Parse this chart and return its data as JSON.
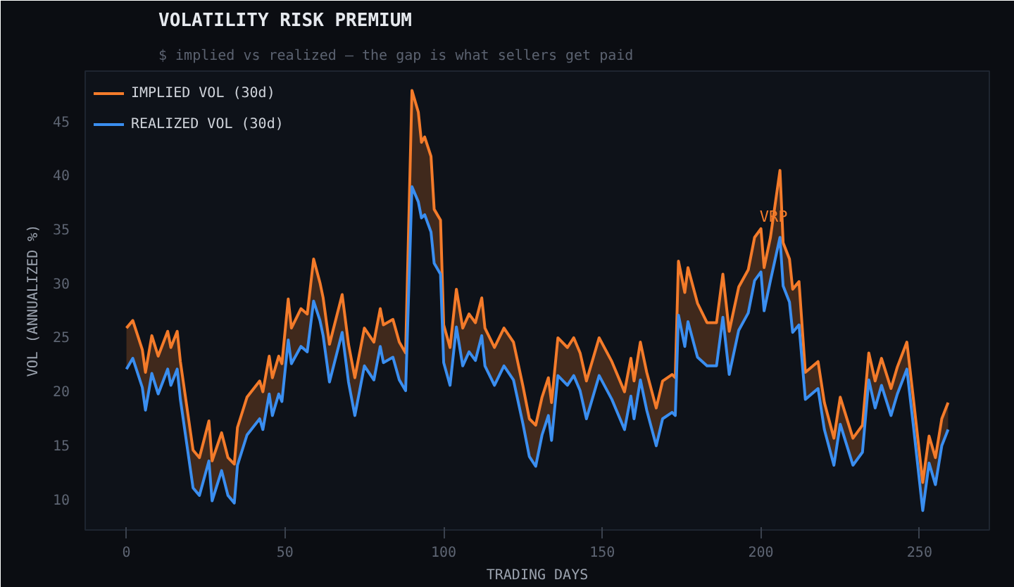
{
  "chart_data": {
    "type": "line",
    "title": "VOLATILITY RISK PREMIUM",
    "subtitle": "$ implied vs realized — the gap is what sellers get paid",
    "xlabel": "TRADING DAYS",
    "ylabel": "VOL (ANNUALIZED %)",
    "xlim": [
      -13,
      272
    ],
    "ylim": [
      7.1,
      49.6
    ],
    "xticks": [
      0,
      50,
      100,
      150,
      200,
      250
    ],
    "yticks": [
      10,
      15,
      20,
      25,
      30,
      35,
      40,
      45
    ],
    "grid": false,
    "legend": "top left",
    "line_style": "solid",
    "marker": "none",
    "annotations": [
      {
        "text": "VRP",
        "x": 204,
        "y": 36.1
      }
    ],
    "series": [
      {
        "name": "IMPLIED VOL (30d)",
        "color": "#f47b2a",
        "x": [
          0,
          2,
          5,
          6,
          8,
          10,
          13,
          14,
          16,
          17,
          21,
          23,
          26,
          27,
          30,
          32,
          34,
          35,
          38,
          42,
          43,
          45,
          46,
          48,
          49,
          51,
          52,
          55,
          57,
          59,
          61,
          62,
          64,
          68,
          70,
          72,
          75,
          78,
          80,
          81,
          84,
          86,
          88,
          90,
          92,
          93,
          94,
          96,
          97,
          99,
          100,
          102,
          104,
          106,
          108,
          110,
          112,
          113,
          116,
          119,
          122,
          125,
          127,
          129,
          131,
          133,
          134,
          136,
          139,
          141,
          143,
          145,
          149,
          153,
          157,
          159,
          160,
          162,
          164,
          167,
          169,
          172,
          173,
          174,
          176,
          177,
          180,
          183,
          186,
          188,
          190,
          193,
          196,
          198,
          200,
          201,
          203,
          206,
          207,
          209,
          210,
          212,
          214,
          218,
          220,
          223,
          225,
          229,
          232,
          234,
          236,
          238,
          241,
          243,
          246,
          248,
          251,
          253,
          255,
          257,
          259
        ],
        "values": [
          25.8,
          26.5,
          23.8,
          21.7,
          25.1,
          23.2,
          25.5,
          24.0,
          25.5,
          22.7,
          14.5,
          13.8,
          17.2,
          13.5,
          16.1,
          13.8,
          13.2,
          16.6,
          19.4,
          20.9,
          19.9,
          23.2,
          21.2,
          23.2,
          22.5,
          28.5,
          25.8,
          27.6,
          27.1,
          32.2,
          30.0,
          28.6,
          24.3,
          28.9,
          24.3,
          21.2,
          25.8,
          24.5,
          27.6,
          26.1,
          26.6,
          24.5,
          23.5,
          47.8,
          45.8,
          43.0,
          43.5,
          41.7,
          36.8,
          35.8,
          26.1,
          24.0,
          29.4,
          25.8,
          27.1,
          26.3,
          28.6,
          25.8,
          24.0,
          25.8,
          24.5,
          20.4,
          17.4,
          16.8,
          19.4,
          21.2,
          18.9,
          24.9,
          24.0,
          24.9,
          23.5,
          20.9,
          24.9,
          22.7,
          19.9,
          23.0,
          20.9,
          24.5,
          21.7,
          18.4,
          20.9,
          21.5,
          21.2,
          32.0,
          29.1,
          31.4,
          28.1,
          26.3,
          26.3,
          30.8,
          25.5,
          29.6,
          31.2,
          34.2,
          35.0,
          31.4,
          34.2,
          40.4,
          33.7,
          32.2,
          29.4,
          30.1,
          21.7,
          22.7,
          18.9,
          15.6,
          19.4,
          15.6,
          16.8,
          23.5,
          20.9,
          23.0,
          20.2,
          22.2,
          24.5,
          19.4,
          11.5,
          15.8,
          13.8,
          17.4,
          18.9
        ],
        "lower": [
          22.0,
          23.0,
          20.3,
          18.2,
          21.6,
          19.7,
          22.0,
          20.5,
          22.0,
          19.2,
          11.0,
          10.3,
          13.5,
          9.8,
          12.6,
          10.3,
          9.6,
          13.1,
          15.9,
          17.4,
          16.4,
          19.7,
          17.7,
          19.7,
          19.0,
          24.7,
          22.5,
          24.1,
          23.6,
          28.3,
          26.5,
          25.1,
          20.8,
          25.4,
          20.8,
          17.7,
          22.3,
          21.0,
          24.1,
          22.6,
          23.1,
          21.0,
          20.0,
          38.9,
          37.5,
          36.0,
          36.3,
          34.7,
          31.8,
          30.8,
          22.6,
          20.5,
          25.9,
          22.3,
          23.6,
          22.8,
          25.1,
          22.3,
          20.5,
          22.3,
          21.0,
          16.9,
          13.9,
          13.0,
          15.9,
          17.7,
          15.4,
          21.4,
          20.5,
          21.4,
          20.0,
          17.4,
          21.4,
          19.2,
          16.4,
          19.5,
          17.4,
          21.0,
          18.2,
          14.9,
          17.4,
          18.0,
          17.7,
          27.0,
          24.1,
          26.4,
          23.1,
          22.3,
          22.3,
          26.8,
          21.5,
          25.6,
          27.2,
          30.2,
          31.0,
          27.4,
          30.2,
          34.2,
          29.7,
          28.2,
          25.4,
          26.1,
          19.2,
          20.2,
          16.4,
          13.1,
          16.9,
          13.1,
          14.3,
          21.0,
          18.4,
          20.5,
          17.7,
          19.7,
          22.0,
          16.9,
          8.9,
          13.3,
          11.3,
          14.9,
          16.4
        ],
        "upper": [
          25.8,
          26.5,
          23.8,
          21.7,
          25.1,
          23.2,
          25.5,
          24.0,
          25.5,
          22.7,
          14.5,
          13.8,
          17.2,
          13.5,
          16.1,
          13.8,
          13.2,
          16.6,
          19.4,
          20.9,
          19.9,
          23.2,
          21.2,
          23.2,
          22.5,
          28.5,
          25.8,
          27.6,
          27.1,
          32.2,
          30.0,
          28.6,
          24.3,
          28.9,
          24.3,
          21.2,
          25.8,
          24.5,
          27.6,
          26.1,
          26.6,
          24.5,
          23.5,
          47.8,
          45.8,
          43.0,
          43.5,
          41.7,
          36.8,
          35.8,
          26.1,
          24.0,
          29.4,
          25.8,
          27.1,
          26.3,
          28.6,
          25.8,
          24.0,
          25.8,
          24.5,
          20.4,
          17.4,
          16.8,
          19.4,
          21.2,
          18.9,
          24.9,
          24.0,
          24.9,
          23.5,
          20.9,
          24.9,
          22.7,
          19.9,
          23.0,
          20.9,
          24.5,
          21.7,
          18.4,
          20.9,
          21.5,
          21.2,
          32.0,
          29.1,
          31.4,
          28.1,
          26.3,
          26.3,
          30.8,
          25.5,
          29.6,
          31.2,
          34.2,
          35.0,
          31.4,
          34.2,
          40.4,
          33.7,
          32.2,
          29.4,
          30.1,
          21.7,
          22.7,
          18.9,
          15.6,
          19.4,
          15.6,
          16.8,
          23.5,
          20.9,
          23.0,
          20.2,
          22.2,
          24.5,
          19.4,
          11.5,
          15.8,
          13.8,
          17.4,
          18.9
        ]
      },
      {
        "name": "REALIZED VOL (30d)",
        "color": "#3a8ef0",
        "x": [
          0,
          2,
          5,
          6,
          8,
          10,
          13,
          14,
          16,
          17,
          21,
          23,
          26,
          27,
          30,
          32,
          34,
          35,
          38,
          42,
          43,
          45,
          46,
          48,
          49,
          51,
          52,
          55,
          57,
          59,
          61,
          62,
          64,
          68,
          70,
          72,
          75,
          78,
          80,
          81,
          84,
          86,
          88,
          90,
          92,
          93,
          94,
          96,
          97,
          99,
          100,
          102,
          104,
          106,
          108,
          110,
          112,
          113,
          116,
          119,
          122,
          125,
          127,
          129,
          131,
          133,
          134,
          136,
          139,
          141,
          143,
          145,
          149,
          153,
          157,
          159,
          160,
          162,
          164,
          167,
          169,
          172,
          173,
          174,
          176,
          177,
          180,
          183,
          186,
          188,
          190,
          193,
          196,
          198,
          200,
          201,
          203,
          206,
          207,
          209,
          210,
          212,
          214,
          218,
          220,
          223,
          225,
          229,
          232,
          234,
          236,
          238,
          241,
          243,
          246,
          248,
          251,
          253,
          255,
          257,
          259
        ],
        "values": [
          22.0,
          23.0,
          20.3,
          18.2,
          21.6,
          19.7,
          22.0,
          20.5,
          22.0,
          19.2,
          11.0,
          10.3,
          13.5,
          9.8,
          12.6,
          10.3,
          9.6,
          13.1,
          15.9,
          17.4,
          16.4,
          19.7,
          17.7,
          19.7,
          19.0,
          24.7,
          22.5,
          24.1,
          23.6,
          28.3,
          26.5,
          25.1,
          20.8,
          25.4,
          20.8,
          17.7,
          22.3,
          21.0,
          24.1,
          22.6,
          23.1,
          21.0,
          20.0,
          38.9,
          37.5,
          36.0,
          36.3,
          34.7,
          31.8,
          30.8,
          22.6,
          20.5,
          25.9,
          22.3,
          23.6,
          22.8,
          25.1,
          22.3,
          20.5,
          22.3,
          21.0,
          16.9,
          13.9,
          13.0,
          15.9,
          17.7,
          15.4,
          21.4,
          20.5,
          21.4,
          20.0,
          17.4,
          21.4,
          19.2,
          16.4,
          19.5,
          17.4,
          21.0,
          18.2,
          14.9,
          17.4,
          18.0,
          17.7,
          27.0,
          24.1,
          26.4,
          23.1,
          22.3,
          22.3,
          26.8,
          21.5,
          25.6,
          27.2,
          30.2,
          31.0,
          27.4,
          30.2,
          34.2,
          29.7,
          28.2,
          25.4,
          26.1,
          19.2,
          20.2,
          16.4,
          13.1,
          16.9,
          13.1,
          14.3,
          21.0,
          18.4,
          20.5,
          17.7,
          19.7,
          22.0,
          16.9,
          8.9,
          13.3,
          11.3,
          14.9,
          16.4
        ]
      }
    ]
  }
}
